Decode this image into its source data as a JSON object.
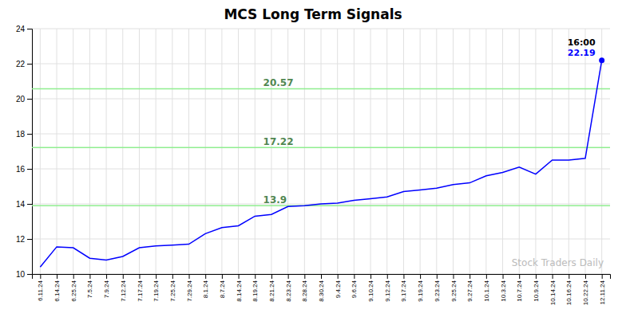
{
  "chart_data": {
    "type": "line",
    "title": "MCS Long Term Signals",
    "categories": [
      "6.11.24",
      "6.14.24",
      "6.25.24",
      "7.5.24",
      "7.9.24",
      "7.12.24",
      "7.17.24",
      "7.19.24",
      "7.25.24",
      "7.29.24",
      "8.1.24",
      "8.7.24",
      "8.14.24",
      "8.19.24",
      "8.21.24",
      "8.23.24",
      "8.28.24",
      "8.30.24",
      "9.4.24",
      "9.6.24",
      "9.10.24",
      "9.12.24",
      "9.17.24",
      "9.19.24",
      "9.23.24",
      "9.25.24",
      "9.27.24",
      "10.1.24",
      "10.3.24",
      "10.7.24",
      "10.9.24",
      "10.14.24",
      "10.16.24",
      "10.22.24",
      "12.11.24"
    ],
    "values": [
      10.4,
      11.55,
      11.5,
      10.9,
      10.8,
      11.0,
      11.5,
      11.6,
      11.65,
      11.7,
      12.3,
      12.65,
      12.75,
      13.3,
      13.4,
      13.85,
      13.9,
      14.0,
      14.05,
      14.2,
      14.3,
      14.4,
      14.7,
      14.8,
      14.9,
      15.1,
      15.2,
      15.6,
      15.8,
      16.1,
      15.7,
      16.5,
      16.5,
      16.6,
      22.19
    ],
    "color": "blue",
    "ylim": [
      10,
      24
    ],
    "yticks": [
      10,
      12,
      14,
      16,
      18,
      20,
      22,
      24
    ],
    "grid": true,
    "hlines": [
      {
        "value": 13.9,
        "label": "13.9",
        "color": "#90EE90"
      },
      {
        "value": 17.22,
        "label": "17.22",
        "color": "#90EE90"
      },
      {
        "value": 20.57,
        "label": "20.57",
        "color": "#90EE90"
      }
    ],
    "watermark": "Stock Traders Daily",
    "annotations": [
      {
        "text": "16:00",
        "color": "black"
      },
      {
        "text": "22.19",
        "color": "blue"
      }
    ]
  }
}
